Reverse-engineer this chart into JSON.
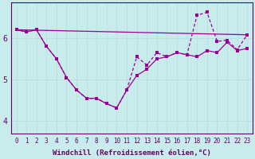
{
  "background_color": "#c8ecec",
  "line_color": "#990099",
  "grid_color": "#b8dede",
  "axis_color": "#660066",
  "xlabel": "Windchill (Refroidissement éolien,°C)",
  "xlim": [
    -0.5,
    23.5
  ],
  "ylim": [
    3.7,
    6.85
  ],
  "yticks": [
    4,
    5,
    6
  ],
  "xticks": [
    0,
    1,
    2,
    3,
    4,
    5,
    6,
    7,
    8,
    9,
    10,
    11,
    12,
    13,
    14,
    15,
    16,
    17,
    18,
    19,
    20,
    21,
    22,
    23
  ],
  "line1_x": [
    0,
    1,
    2,
    3,
    4,
    5,
    6,
    7,
    8,
    9,
    10,
    11,
    12,
    13,
    14,
    15,
    16,
    17,
    18,
    19,
    20,
    21,
    22,
    23
  ],
  "line1_y": [
    6.2,
    6.15,
    6.2,
    5.8,
    5.5,
    5.05,
    4.75,
    4.55,
    4.55,
    4.42,
    4.32,
    4.75,
    5.1,
    5.25,
    5.5,
    5.55,
    5.65,
    5.6,
    5.55,
    5.7,
    5.65,
    5.9,
    5.7,
    5.75
  ],
  "line2_x": [
    0,
    1,
    2,
    3,
    4,
    5,
    6,
    7,
    8,
    9,
    10,
    11,
    12,
    13,
    14,
    15,
    16,
    17,
    18,
    19,
    20,
    21,
    22,
    23
  ],
  "line2_y": [
    6.2,
    6.15,
    6.2,
    5.8,
    5.5,
    5.05,
    4.75,
    4.55,
    4.55,
    4.42,
    4.32,
    4.75,
    5.55,
    5.35,
    5.65,
    5.55,
    5.65,
    5.6,
    6.55,
    6.62,
    5.92,
    5.95,
    5.72,
    6.08
  ],
  "line3_x": [
    0,
    23
  ],
  "line3_y": [
    6.2,
    6.08
  ],
  "fontsize_label": 6.5,
  "fontsize_tick": 5.5
}
